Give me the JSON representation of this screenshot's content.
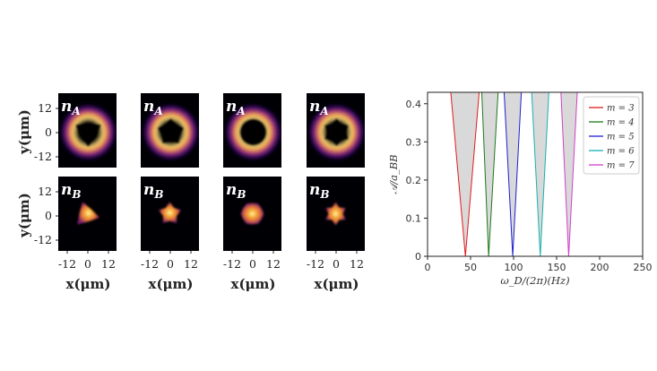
{
  "figure": {
    "row_a": {
      "label": "n_A",
      "sub": "A"
    },
    "row_b": {
      "label": "n_B",
      "sub": "B"
    },
    "y_axis_label": "y(μm)",
    "x_axis_label": "x(μm)",
    "y_ticks": [
      "12",
      "0",
      "-12"
    ],
    "x_ticks": [
      "-12",
      "0",
      "12"
    ]
  },
  "chart_data": {
    "type": "line",
    "xlabel": "ω_D/(2π)(Hz)",
    "ylabel": "𝒜/a_BB",
    "xlim": [
      0,
      250
    ],
    "ylim": [
      0,
      0.43
    ],
    "x_ticks": [
      "0",
      "50",
      "100",
      "150",
      "200",
      "250"
    ],
    "y_ticks": [
      "0",
      "0.1",
      "0.2",
      "0.3",
      "0.4"
    ],
    "legend_position": "top-right",
    "series": [
      {
        "name": "m = 3",
        "color": "#e31a1c",
        "vertex_x": 44,
        "left_x_at_top": 27,
        "right_x_at_top": 60
      },
      {
        "name": "m = 4",
        "color": "#1b7a1b",
        "vertex_x": 71,
        "left_x_at_top": 63,
        "right_x_at_top": 82
      },
      {
        "name": "m = 5",
        "color": "#1f1fd0",
        "vertex_x": 99,
        "left_x_at_top": 89,
        "right_x_at_top": 109
      },
      {
        "name": "m = 6",
        "color": "#18b0b0",
        "vertex_x": 131,
        "left_x_at_top": 121,
        "right_x_at_top": 141
      },
      {
        "name": "m = 7",
        "color": "#d040c8",
        "vertex_x": 164,
        "left_x_at_top": 155,
        "right_x_at_top": 174
      }
    ],
    "shaded_regions_color": "#d9d9d9"
  }
}
